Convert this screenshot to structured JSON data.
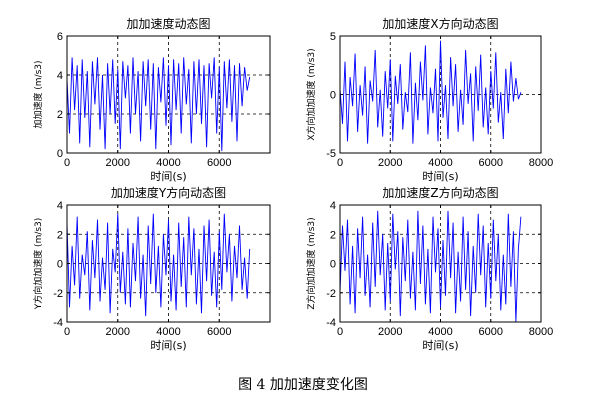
{
  "figure_caption": "图 4  加加速度变化图",
  "chart_data": [
    {
      "id": "jerk",
      "type": "line",
      "title": "加加速度动态图",
      "xlabel": "时间(s)",
      "ylabel": "加加速度 (m/s3)",
      "xlim": [
        0,
        8000
      ],
      "ylim": [
        0,
        6
      ],
      "xticks": [
        0,
        2000,
        4000,
        6000
      ],
      "yticks": [
        0,
        2,
        4,
        6
      ],
      "grid": true,
      "line_color": "#0000ff",
      "series": [
        {
          "x": [
            0,
            100,
            200,
            300,
            400,
            500,
            600,
            700,
            800,
            900,
            1000,
            1100,
            1200,
            1300,
            1400,
            1500,
            1600,
            1700,
            1800,
            1900,
            2000,
            2100,
            2200,
            2300,
            2400,
            2500,
            2600,
            2700,
            2800,
            2900,
            3000,
            3100,
            3200,
            3300,
            3400,
            3500,
            3600,
            3700,
            3800,
            3900,
            4000,
            4100,
            4200,
            4300,
            4400,
            4500,
            4600,
            4700,
            4800,
            4900,
            5000,
            5100,
            5200,
            5300,
            5400,
            5500,
            5600,
            5700,
            5800,
            5900,
            6000,
            6100,
            6200,
            6300,
            6400,
            6500,
            6600,
            6700,
            6800,
            6900,
            7000,
            7100,
            7200
          ],
          "y": [
            3.8,
            1.0,
            4.9,
            2.2,
            4.5,
            0.5,
            4.8,
            1.8,
            4.2,
            0.3,
            4.7,
            2.5,
            4.9,
            1.2,
            4.0,
            0.2,
            4.6,
            2.0,
            4.8,
            1.5,
            4.3,
            0.2,
            4.7,
            2.8,
            4.5,
            1.0,
            4.9,
            2.0,
            4.2,
            0.6,
            4.7,
            2.4,
            4.8,
            1.2,
            4.6,
            0.2,
            4.4,
            2.6,
            4.9,
            1.4,
            4.5,
            0.4,
            4.8,
            2.2,
            4.6,
            1.0,
            4.9,
            2.5,
            4.3,
            0.5,
            4.7,
            2.0,
            4.8,
            1.5,
            4.5,
            0.3,
            4.6,
            2.8,
            4.9,
            1.0,
            4.4,
            0.1,
            4.7,
            2.3,
            4.8,
            1.6,
            4.5,
            0.6,
            4.6,
            2.4,
            4.4,
            3.2,
            3.9
          ]
        }
      ]
    },
    {
      "id": "jerk-x",
      "type": "line",
      "title": "加加速度X方向动态图",
      "xlabel": "时间(s)",
      "ylabel": "X方向加加速度 (m/s3)",
      "xlim": [
        0,
        8000
      ],
      "ylim": [
        -5,
        5
      ],
      "xticks": [
        0,
        2000,
        4000,
        6000,
        8000
      ],
      "yticks": [
        -5,
        0,
        5
      ],
      "grid": true,
      "line_color": "#0000ff",
      "series": [
        {
          "x": [
            0,
            100,
            200,
            300,
            400,
            500,
            600,
            700,
            800,
            900,
            1000,
            1100,
            1200,
            1300,
            1400,
            1500,
            1600,
            1700,
            1800,
            1900,
            2000,
            2100,
            2200,
            2300,
            2400,
            2500,
            2600,
            2700,
            2800,
            2900,
            3000,
            3100,
            3200,
            3300,
            3400,
            3500,
            3600,
            3700,
            3800,
            3900,
            4000,
            4100,
            4200,
            4300,
            4400,
            4500,
            4600,
            4700,
            4800,
            4900,
            5000,
            5100,
            5200,
            5300,
            5400,
            5500,
            5600,
            5700,
            5800,
            5900,
            6000,
            6100,
            6200,
            6300,
            6400,
            6500,
            6600,
            6700,
            6800,
            6900,
            7000,
            7100,
            7200
          ],
          "y": [
            0.5,
            -2.5,
            2.8,
            -4.0,
            1.5,
            -1.0,
            3.5,
            -3.2,
            0.8,
            -1.8,
            2.4,
            -4.2,
            1.2,
            -0.6,
            3.8,
            -2.8,
            0.4,
            -3.6,
            2.0,
            -1.2,
            3.0,
            -4.0,
            1.6,
            -0.8,
            2.6,
            -3.0,
            0.2,
            -1.5,
            3.6,
            -4.2,
            1.0,
            -2.2,
            2.8,
            -0.5,
            4.2,
            -3.4,
            0.6,
            -1.6,
            2.2,
            -4.0,
            4.6,
            -2.0,
            0.8,
            -3.8,
            3.2,
            -1.0,
            2.6,
            -3.2,
            0.4,
            -2.6,
            3.8,
            -0.8,
            1.8,
            -4.0,
            2.4,
            -1.4,
            3.4,
            -2.8,
            0.6,
            -3.4,
            2.0,
            -1.2,
            3.6,
            -2.4,
            0.2,
            -3.8,
            2.2,
            -1.6,
            2.8,
            -0.6,
            1.4,
            -0.4,
            0.2
          ]
        }
      ]
    },
    {
      "id": "jerk-y",
      "type": "line",
      "title": "加加速度Y方向动态图",
      "xlabel": "时间(s)",
      "ylabel": "Y方向加加速度 (m/s3)",
      "xlim": [
        0,
        8000
      ],
      "ylim": [
        -4,
        4
      ],
      "xticks": [
        0,
        2000,
        4000,
        6000
      ],
      "yticks": [
        -4,
        -2,
        0,
        2,
        4
      ],
      "grid": true,
      "line_color": "#0000ff",
      "series": [
        {
          "x": [
            0,
            100,
            200,
            300,
            400,
            500,
            600,
            700,
            800,
            900,
            1000,
            1100,
            1200,
            1300,
            1400,
            1500,
            1600,
            1700,
            1800,
            1900,
            2000,
            2100,
            2200,
            2300,
            2400,
            2500,
            2600,
            2700,
            2800,
            2900,
            3000,
            3100,
            3200,
            3300,
            3400,
            3500,
            3600,
            3700,
            3800,
            3900,
            4000,
            4100,
            4200,
            4300,
            4400,
            4500,
            4600,
            4700,
            4800,
            4900,
            5000,
            5100,
            5200,
            5300,
            5400,
            5500,
            5600,
            5700,
            5800,
            5900,
            6000,
            6100,
            6200,
            6300,
            6400,
            6500,
            6600,
            6700,
            6800,
            6900,
            7000,
            7100,
            7200
          ],
          "y": [
            2.8,
            -3.0,
            1.2,
            -1.5,
            3.2,
            -2.4,
            0.6,
            -0.8,
            2.2,
            -3.2,
            1.6,
            -1.0,
            3.0,
            -2.6,
            0.4,
            -1.8,
            2.8,
            -3.4,
            1.0,
            -0.6,
            3.4,
            -2.0,
            0.8,
            -2.8,
            2.4,
            -3.0,
            1.4,
            -1.2,
            3.2,
            -2.4,
            0.6,
            -3.6,
            2.6,
            -1.4,
            3.4,
            -2.0,
            1.2,
            -3.0,
            2.0,
            -0.8,
            3.0,
            -2.6,
            0.6,
            -3.2,
            2.8,
            -1.6,
            1.8,
            -3.0,
            3.2,
            -0.8,
            2.4,
            -2.8,
            1.0,
            -3.4,
            2.6,
            -1.2,
            3.0,
            -2.2,
            0.8,
            -3.0,
            2.2,
            -1.8,
            3.4,
            -0.6,
            2.0,
            -2.6,
            1.2,
            -1.0,
            2.6,
            -1.8,
            0.4,
            -2.4,
            1.0
          ]
        }
      ]
    },
    {
      "id": "jerk-z",
      "type": "line",
      "title": "加加速度Z方向动态图",
      "xlabel": "时间(s)",
      "ylabel": "Z方向加加速度 (m/s3)",
      "xlim": [
        0,
        8000
      ],
      "ylim": [
        -4,
        4
      ],
      "xticks": [
        0,
        2000,
        4000,
        6000,
        8000
      ],
      "yticks": [
        -4,
        -2,
        0,
        2,
        4
      ],
      "grid": true,
      "line_color": "#0000ff",
      "series": [
        {
          "x": [
            0,
            100,
            200,
            300,
            400,
            500,
            600,
            700,
            800,
            900,
            1000,
            1100,
            1200,
            1300,
            1400,
            1500,
            1600,
            1700,
            1800,
            1900,
            2000,
            2100,
            2200,
            2300,
            2400,
            2500,
            2600,
            2700,
            2800,
            2900,
            3000,
            3100,
            3200,
            3300,
            3400,
            3500,
            3600,
            3700,
            3800,
            3900,
            4000,
            4100,
            4200,
            4300,
            4400,
            4500,
            4600,
            4700,
            4800,
            4900,
            5000,
            5100,
            5200,
            5300,
            5400,
            5500,
            5600,
            5700,
            5800,
            5900,
            6000,
            6100,
            6200,
            6300,
            6400,
            6500,
            6600,
            6700,
            6800,
            6900,
            7000,
            7100,
            7200
          ],
          "y": [
            -2.0,
            2.6,
            -0.5,
            3.0,
            -2.8,
            1.2,
            -3.4,
            2.4,
            -1.0,
            3.2,
            -2.2,
            0.6,
            -3.0,
            2.8,
            -1.6,
            3.6,
            -0.8,
            2.0,
            -3.2,
            1.4,
            -2.6,
            3.4,
            -0.4,
            2.2,
            -3.6,
            1.8,
            -1.2,
            3.0,
            -2.4,
            0.8,
            -3.2,
            3.6,
            -1.4,
            2.6,
            -2.8,
            1.0,
            -3.4,
            3.2,
            -0.6,
            2.4,
            -3.0,
            1.6,
            -2.2,
            3.6,
            -1.0,
            2.8,
            -3.4,
            0.8,
            -2.6,
            3.2,
            -1.8,
            2.2,
            -3.6,
            1.2,
            -2.0,
            3.4,
            -0.8,
            2.6,
            -3.0,
            1.4,
            -2.4,
            3.0,
            -1.2,
            2.0,
            -3.2,
            0.6,
            -2.8,
            3.4,
            -1.6,
            2.2,
            -4.0,
            1.0,
            3.2
          ]
        }
      ]
    }
  ]
}
